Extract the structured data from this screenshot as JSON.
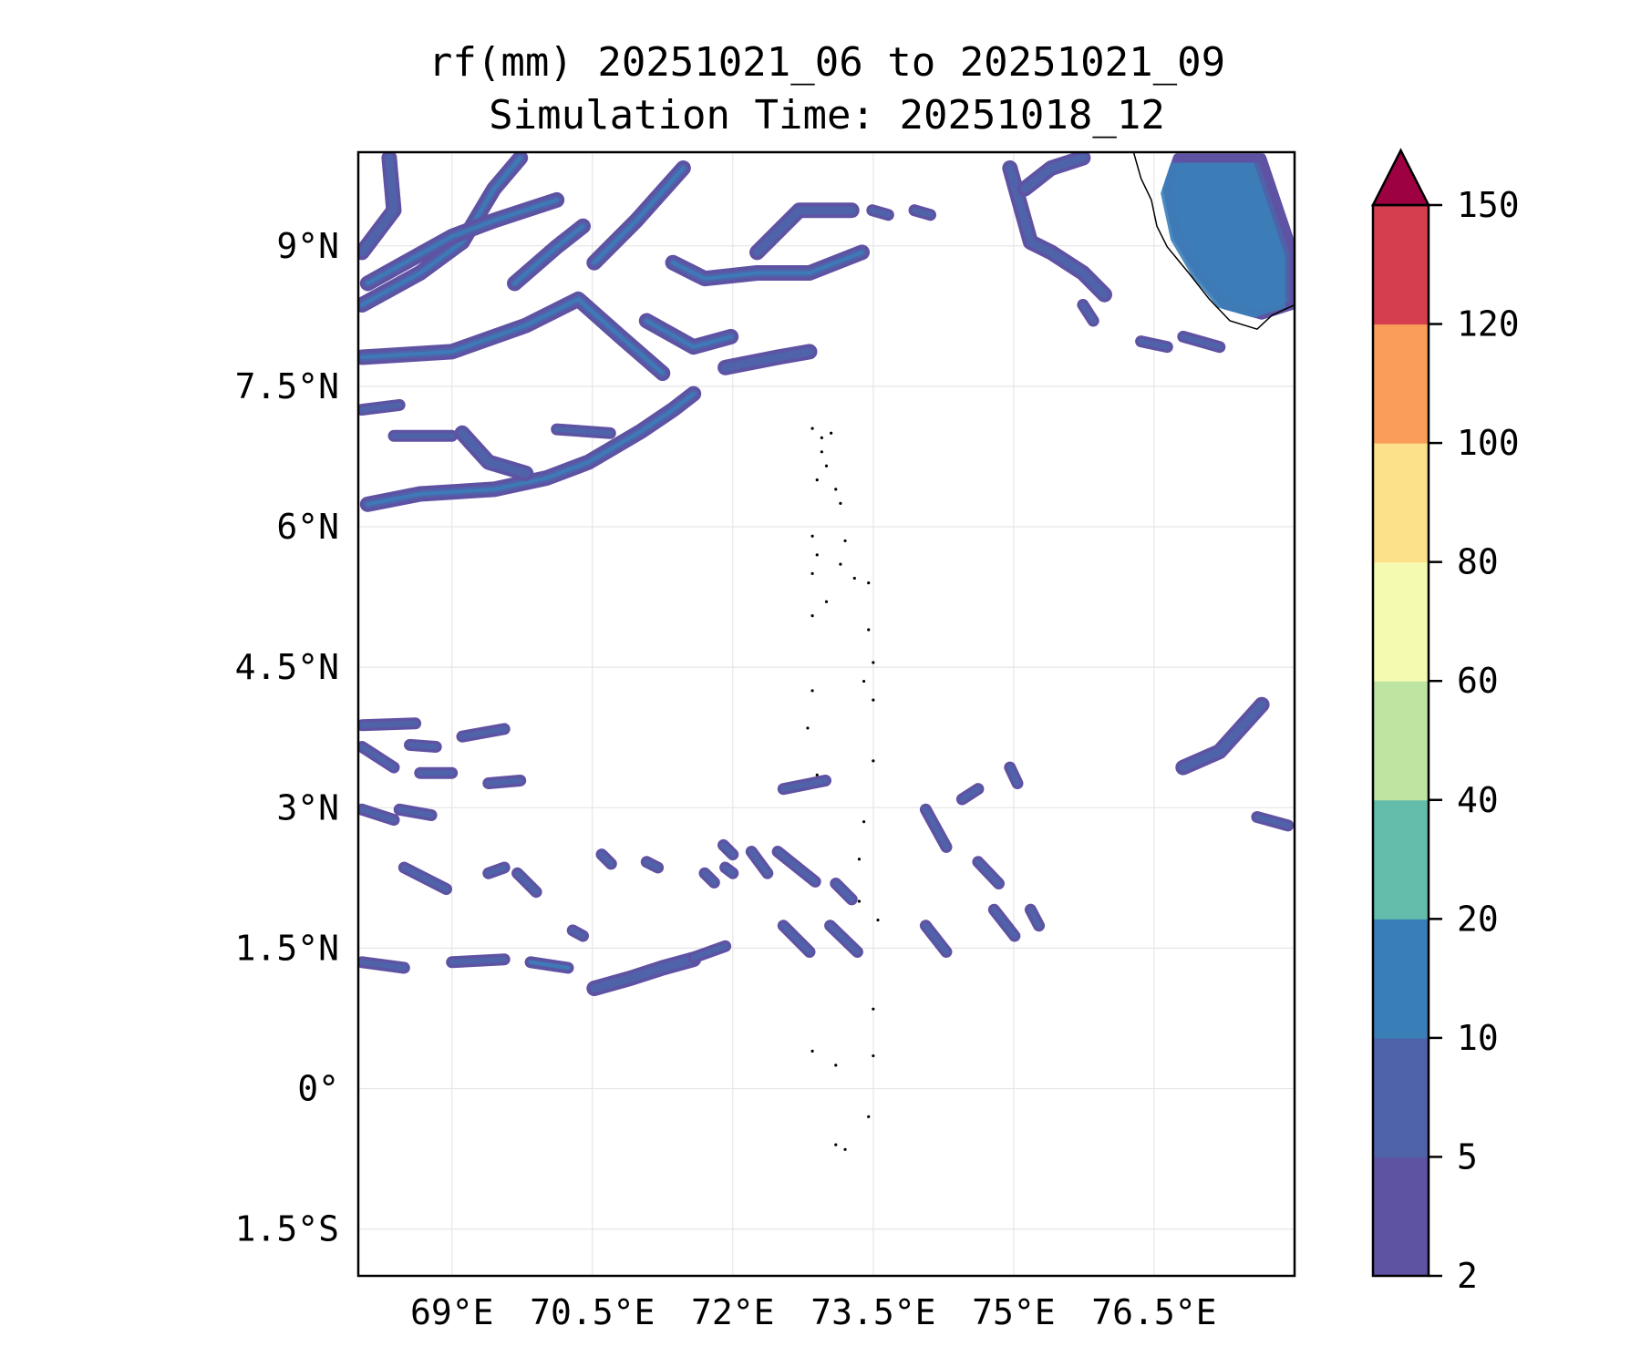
{
  "chart_data": {
    "type": "heatmap",
    "subtype": "filled-contour-map",
    "title": "rf(mm) 20251021_06 to 20251021_09",
    "subtitle": "Simulation Time: 20251018_12",
    "xlabel": "",
    "ylabel": "",
    "xlim": [
      68,
      78
    ],
    "ylim": [
      -2,
      10
    ],
    "grid": true,
    "x_ticks": [
      69,
      70.5,
      72,
      73.5,
      75,
      76.5
    ],
    "x_tick_labels": [
      "69°E",
      "70.5°E",
      "72°E",
      "73.5°E",
      "75°E",
      "76.5°E"
    ],
    "y_ticks": [
      9,
      7.5,
      6,
      4.5,
      3,
      1.5,
      0,
      -1.5
    ],
    "y_tick_labels": [
      "9°N",
      "7.5°N",
      "6°N",
      "4.5°N",
      "3°N",
      "1.5°N",
      "0°",
      "1.5°S"
    ],
    "colorbar": {
      "position": "right",
      "extend": "max",
      "levels": [
        2,
        5,
        10,
        20,
        40,
        60,
        80,
        100,
        120,
        150
      ],
      "tick_labels": [
        "2",
        "5",
        "10",
        "20",
        "40",
        "60",
        "80",
        "100",
        "120",
        "150"
      ],
      "colors": [
        "#5e53a3",
        "#4f63ab",
        "#3a7eb8",
        "#63bdaa",
        "#bde4a1",
        "#f4fab0",
        "#fce08a",
        "#f99d59",
        "#d53e4f"
      ],
      "extend_color": "#9e0142"
    },
    "rain_bands": [
      {
        "core": true,
        "pts": [
          [
            68.04,
            7.81
          ],
          [
            69.0,
            7.87
          ],
          [
            69.79,
            8.15
          ],
          [
            70.35,
            8.43
          ],
          [
            70.8,
            8.03
          ],
          [
            71.25,
            7.64
          ]
        ]
      },
      {
        "core": true,
        "pts": [
          [
            68.04,
            8.37
          ],
          [
            68.66,
            8.71
          ],
          [
            69.11,
            9.04
          ],
          [
            69.45,
            9.61
          ],
          [
            69.73,
            9.94
          ]
        ]
      },
      {
        "core": false,
        "pts": [
          [
            68.04,
            8.93
          ],
          [
            68.38,
            9.38
          ],
          [
            68.33,
            9.94
          ]
        ]
      },
      {
        "core": true,
        "pts": [
          [
            68.1,
            6.24
          ],
          [
            68.66,
            6.35
          ],
          [
            69.45,
            6.4
          ],
          [
            70.01,
            6.52
          ],
          [
            70.46,
            6.69
          ],
          [
            71.02,
            7.02
          ],
          [
            71.36,
            7.25
          ],
          [
            71.58,
            7.42
          ]
        ]
      },
      {
        "core": false,
        "pts": [
          [
            69.11,
            7.0
          ],
          [
            69.39,
            6.69
          ],
          [
            69.79,
            6.57
          ]
        ]
      },
      {
        "core": false,
        "pts": [
          [
            68.04,
            7.25
          ],
          [
            68.44,
            7.3
          ]
        ]
      },
      {
        "core": false,
        "pts": [
          [
            68.38,
            6.97
          ],
          [
            69.0,
            6.97
          ]
        ]
      },
      {
        "core": false,
        "pts": [
          [
            70.12,
            7.04
          ],
          [
            70.69,
            7.0
          ]
        ]
      },
      {
        "core": true,
        "pts": [
          [
            68.1,
            8.6
          ],
          [
            69.0,
            9.1
          ],
          [
            69.45,
            9.27
          ],
          [
            70.12,
            9.49
          ]
        ]
      },
      {
        "core": true,
        "pts": [
          [
            69.67,
            8.6
          ],
          [
            70.12,
            8.99
          ],
          [
            70.4,
            9.21
          ]
        ]
      },
      {
        "core": true,
        "pts": [
          [
            70.52,
            8.82
          ],
          [
            70.97,
            9.27
          ],
          [
            71.47,
            9.83
          ]
        ]
      },
      {
        "core": true,
        "pts": [
          [
            71.36,
            8.82
          ],
          [
            71.7,
            8.65
          ],
          [
            72.26,
            8.71
          ],
          [
            72.82,
            8.71
          ],
          [
            73.38,
            8.93
          ]
        ]
      },
      {
        "core": false,
        "pts": [
          [
            72.26,
            8.93
          ],
          [
            72.71,
            9.38
          ],
          [
            73.27,
            9.38
          ]
        ]
      },
      {
        "core": false,
        "pts": [
          [
            71.92,
            7.7
          ],
          [
            72.48,
            7.81
          ],
          [
            72.82,
            7.87
          ]
        ]
      },
      {
        "core": true,
        "pts": [
          [
            71.08,
            8.2
          ],
          [
            71.58,
            7.92
          ],
          [
            71.98,
            8.03
          ]
        ]
      },
      {
        "core": false,
        "pts": [
          [
            73.49,
            9.38
          ],
          [
            73.66,
            9.33
          ]
        ]
      },
      {
        "core": false,
        "pts": [
          [
            73.94,
            9.38
          ],
          [
            74.11,
            9.33
          ]
        ]
      },
      {
        "core": false,
        "pts": [
          [
            74.96,
            9.83
          ],
          [
            75.18,
            9.04
          ],
          [
            75.4,
            8.93
          ],
          [
            75.74,
            8.71
          ],
          [
            75.97,
            8.48
          ]
        ]
      },
      {
        "core": false,
        "pts": [
          [
            75.12,
            9.61
          ],
          [
            75.4,
            9.83
          ],
          [
            75.74,
            9.94
          ]
        ]
      },
      {
        "core": false,
        "pts": [
          [
            76.36,
            7.98
          ],
          [
            76.64,
            7.92
          ]
        ]
      },
      {
        "core": false,
        "pts": [
          [
            76.81,
            8.03
          ],
          [
            77.2,
            7.92
          ]
        ]
      },
      {
        "core": false,
        "pts": [
          [
            75.74,
            8.37
          ],
          [
            75.85,
            8.2
          ]
        ]
      },
      {
        "core": false,
        "pts": [
          [
            68.04,
            3.88
          ],
          [
            68.61,
            3.9
          ]
        ]
      },
      {
        "core": false,
        "pts": [
          [
            68.04,
            3.65
          ],
          [
            68.38,
            3.43
          ]
        ]
      },
      {
        "core": false,
        "pts": [
          [
            68.55,
            3.67
          ],
          [
            68.83,
            3.65
          ]
        ]
      },
      {
        "core": false,
        "pts": [
          [
            68.66,
            3.37
          ],
          [
            69.0,
            3.37
          ]
        ]
      },
      {
        "core": false,
        "pts": [
          [
            69.11,
            3.76
          ],
          [
            69.56,
            3.84
          ]
        ]
      },
      {
        "core": false,
        "pts": [
          [
            69.39,
            3.26
          ],
          [
            69.73,
            3.29
          ]
        ]
      },
      {
        "core": false,
        "pts": [
          [
            68.04,
            2.98
          ],
          [
            68.38,
            2.87
          ]
        ]
      },
      {
        "core": false,
        "pts": [
          [
            68.44,
            2.98
          ],
          [
            68.78,
            2.92
          ]
        ]
      },
      {
        "core": false,
        "pts": [
          [
            68.49,
            2.36
          ],
          [
            68.94,
            2.13
          ]
        ]
      },
      {
        "core": false,
        "pts": [
          [
            69.39,
            2.3
          ],
          [
            69.56,
            2.36
          ]
        ]
      },
      {
        "core": false,
        "pts": [
          [
            68.04,
            1.35
          ],
          [
            68.49,
            1.29
          ]
        ]
      },
      {
        "core": false,
        "pts": [
          [
            69.0,
            1.35
          ],
          [
            69.56,
            1.38
          ]
        ]
      },
      {
        "core": true,
        "pts": [
          [
            69.84,
            1.35
          ],
          [
            70.24,
            1.29
          ]
        ]
      },
      {
        "core": false,
        "pts": [
          [
            70.52,
            1.07
          ],
          [
            70.91,
            1.18
          ],
          [
            71.25,
            1.29
          ],
          [
            71.58,
            1.38
          ]
        ]
      },
      {
        "core": false,
        "pts": [
          [
            71.58,
            1.4
          ],
          [
            71.92,
            1.52
          ]
        ]
      },
      {
        "core": false,
        "pts": [
          [
            72.2,
            2.53
          ],
          [
            72.37,
            2.3
          ]
        ]
      },
      {
        "core": false,
        "pts": [
          [
            72.48,
            2.53
          ],
          [
            72.88,
            2.21
          ]
        ]
      },
      {
        "core": false,
        "pts": [
          [
            72.54,
            1.74
          ],
          [
            72.82,
            1.46
          ]
        ]
      },
      {
        "core": false,
        "pts": [
          [
            73.04,
            1.74
          ],
          [
            73.33,
            1.46
          ]
        ]
      },
      {
        "core": false,
        "pts": [
          [
            73.1,
            2.19
          ],
          [
            73.27,
            2.02
          ]
        ]
      },
      {
        "core": false,
        "pts": [
          [
            72.54,
            3.2
          ],
          [
            72.99,
            3.29
          ]
        ]
      },
      {
        "core": false,
        "pts": [
          [
            74.06,
            2.98
          ],
          [
            74.28,
            2.58
          ]
        ]
      },
      {
        "core": false,
        "pts": [
          [
            74.06,
            1.74
          ],
          [
            74.28,
            1.46
          ]
        ]
      },
      {
        "core": false,
        "pts": [
          [
            74.79,
            1.91
          ],
          [
            75.01,
            1.63
          ]
        ]
      },
      {
        "core": false,
        "pts": [
          [
            75.18,
            1.91
          ],
          [
            75.27,
            1.74
          ]
        ]
      },
      {
        "core": false,
        "pts": [
          [
            74.62,
            2.42
          ],
          [
            74.84,
            2.19
          ]
        ]
      },
      {
        "core": false,
        "pts": [
          [
            74.45,
            3.09
          ],
          [
            74.62,
            3.2
          ]
        ]
      },
      {
        "core": false,
        "pts": [
          [
            74.96,
            3.43
          ],
          [
            75.04,
            3.26
          ]
        ]
      },
      {
        "core": false,
        "pts": [
          [
            76.81,
            3.43
          ],
          [
            77.2,
            3.6
          ],
          [
            77.65,
            4.1
          ]
        ]
      },
      {
        "core": false,
        "pts": [
          [
            77.6,
            2.9
          ],
          [
            77.93,
            2.81
          ]
        ]
      },
      {
        "core": false,
        "pts": [
          [
            71.92,
            2.36
          ],
          [
            72.0,
            2.3
          ]
        ]
      },
      {
        "core": false,
        "pts": [
          [
            70.29,
            1.69
          ],
          [
            70.4,
            1.63
          ]
        ]
      },
      {
        "core": false,
        "pts": [
          [
            71.08,
            2.42
          ],
          [
            71.2,
            2.36
          ]
        ]
      },
      {
        "core": false,
        "pts": [
          [
            71.7,
            2.3
          ],
          [
            71.8,
            2.2
          ]
        ]
      },
      {
        "core": false,
        "pts": [
          [
            69.7,
            2.3
          ],
          [
            69.9,
            2.1
          ]
        ]
      },
      {
        "core": false,
        "pts": [
          [
            70.6,
            2.5
          ],
          [
            70.7,
            2.4
          ]
        ]
      },
      {
        "core": false,
        "pts": [
          [
            71.9,
            2.6
          ],
          [
            72.0,
            2.5
          ]
        ]
      }
    ],
    "land_rain_area": {
      "core": true,
      "pts": [
        [
          76.75,
          9.94
        ],
        [
          77.65,
          9.94
        ],
        [
          77.99,
          8.93
        ],
        [
          77.99,
          8.37
        ],
        [
          77.65,
          8.26
        ],
        [
          77.26,
          8.37
        ],
        [
          76.98,
          8.71
        ],
        [
          76.75,
          9.1
        ],
        [
          76.64,
          9.61
        ]
      ]
    },
    "coastline": [
      [
        76.28,
        10.0
      ],
      [
        76.36,
        9.72
      ],
      [
        76.47,
        9.49
      ],
      [
        76.53,
        9.21
      ],
      [
        76.64,
        8.99
      ],
      [
        76.87,
        8.71
      ],
      [
        77.09,
        8.43
      ],
      [
        77.31,
        8.2
      ],
      [
        77.6,
        8.11
      ],
      [
        77.76,
        8.26
      ],
      [
        78.0,
        8.37
      ]
    ],
    "islands": [
      [
        72.85,
        7.05
      ],
      [
        72.95,
        6.95
      ],
      [
        73.05,
        7.0
      ],
      [
        72.95,
        6.8
      ],
      [
        73.0,
        6.65
      ],
      [
        72.9,
        6.5
      ],
      [
        73.1,
        6.4
      ],
      [
        73.15,
        6.25
      ],
      [
        72.85,
        5.9
      ],
      [
        72.9,
        5.7
      ],
      [
        73.2,
        5.85
      ],
      [
        73.15,
        5.6
      ],
      [
        72.85,
        5.5
      ],
      [
        73.3,
        5.45
      ],
      [
        73.45,
        5.4
      ],
      [
        73.0,
        5.2
      ],
      [
        72.85,
        5.05
      ],
      [
        73.45,
        4.9
      ],
      [
        73.5,
        4.55
      ],
      [
        73.4,
        4.35
      ],
      [
        73.5,
        4.15
      ],
      [
        72.85,
        4.25
      ],
      [
        72.8,
        3.85
      ],
      [
        73.5,
        3.5
      ],
      [
        72.9,
        3.35
      ],
      [
        73.4,
        2.85
      ],
      [
        73.35,
        2.45
      ],
      [
        73.35,
        2.0
      ],
      [
        73.55,
        1.8
      ],
      [
        73.5,
        0.85
      ],
      [
        72.85,
        0.4
      ],
      [
        73.1,
        0.25
      ],
      [
        73.5,
        0.35
      ],
      [
        73.45,
        -0.3
      ],
      [
        73.1,
        -0.6
      ],
      [
        73.2,
        -0.65
      ]
    ]
  }
}
